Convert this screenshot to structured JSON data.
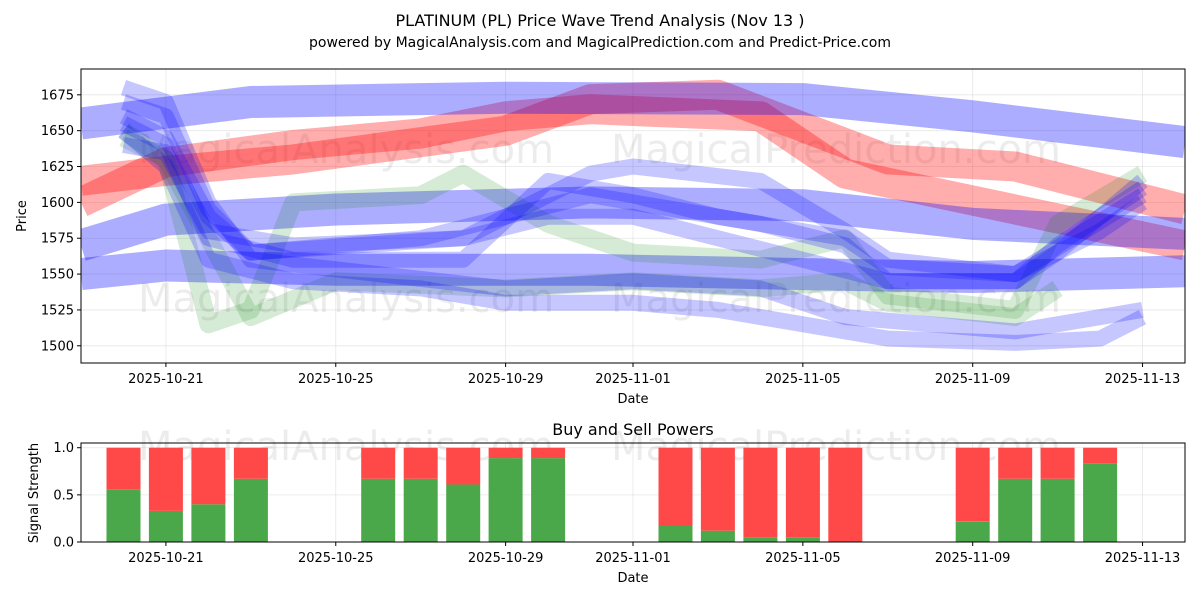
{
  "title_line1": "PLATINUM (PL) Price Wave Trend Analysis (Nov 13 )",
  "title_line2": "powered by MagicalAnalysis.com and MagicalPrediction.com and Predict-Price.com",
  "watermarks": [
    "MagicalAnalysis.com",
    "MagicalPrediction.com"
  ],
  "colors": {
    "blue": "#0000ff",
    "red": "#ff0000",
    "green": "#008000",
    "buy": "#4aa84a",
    "sell": "#ff4949"
  },
  "chart_data": [
    {
      "type": "area",
      "title": "",
      "xlabel": "Date",
      "ylabel": "Price",
      "ylim": [
        1488,
        1693
      ],
      "xlim": [
        "2025-10-19",
        "2025-11-14"
      ],
      "grid": true,
      "x_ticks": [
        "2025-10-21",
        "2025-10-25",
        "2025-10-29",
        "2025-11-01",
        "2025-11-05",
        "2025-11-09",
        "2025-11-13"
      ],
      "y_ticks": [
        1500,
        1525,
        1550,
        1575,
        1600,
        1625,
        1650,
        1675
      ],
      "series": [
        {
          "name": "wave-red-upper",
          "color": "red",
          "alpha": 0.32,
          "width": 30,
          "points": [
            [
              "2025-10-19",
              1615
            ],
            [
              "2025-10-21",
              1622
            ],
            [
              "2025-10-24",
              1630
            ],
            [
              "2025-10-29",
              1650
            ],
            [
              "2025-10-31",
              1672
            ],
            [
              "2025-11-03",
              1675
            ],
            [
              "2025-11-07",
              1630
            ],
            [
              "2025-11-10",
              1625
            ],
            [
              "2025-11-14",
              1595
            ]
          ]
        },
        {
          "name": "wave-red-lower",
          "color": "red",
          "alpha": 0.32,
          "width": 30,
          "points": [
            [
              "2025-10-19",
              1600
            ],
            [
              "2025-10-21",
              1628
            ],
            [
              "2025-10-24",
              1640
            ],
            [
              "2025-10-27",
              1648
            ],
            [
              "2025-10-29",
              1660
            ],
            [
              "2025-10-31",
              1665
            ],
            [
              "2025-11-04",
              1660
            ],
            [
              "2025-11-06",
              1620
            ],
            [
              "2025-11-10",
              1595
            ],
            [
              "2025-11-14",
              1570
            ]
          ]
        },
        {
          "name": "wave-blue-top",
          "color": "blue",
          "alpha": 0.32,
          "width": 32,
          "points": [
            [
              "2025-10-19",
              1655
            ],
            [
              "2025-10-23",
              1670
            ],
            [
              "2025-10-29",
              1673
            ],
            [
              "2025-11-05",
              1672
            ],
            [
              "2025-11-09",
              1660
            ],
            [
              "2025-11-14",
              1642
            ]
          ]
        },
        {
          "name": "wave-blue-mid",
          "color": "blue",
          "alpha": 0.32,
          "width": 32,
          "points": [
            [
              "2025-10-19",
              1570
            ],
            [
              "2025-10-21",
              1588
            ],
            [
              "2025-10-25",
              1595
            ],
            [
              "2025-10-31",
              1600
            ],
            [
              "2025-11-05",
              1598
            ],
            [
              "2025-11-09",
              1585
            ],
            [
              "2025-11-14",
              1578
            ]
          ]
        },
        {
          "name": "wave-blue-low",
          "color": "blue",
          "alpha": 0.32,
          "width": 32,
          "points": [
            [
              "2025-10-19",
              1550
            ],
            [
              "2025-10-21",
              1556
            ],
            [
              "2025-10-25",
              1553
            ],
            [
              "2025-10-31",
              1553
            ],
            [
              "2025-11-05",
              1550
            ],
            [
              "2025-11-09",
              1548
            ],
            [
              "2025-11-14",
              1552
            ]
          ]
        },
        {
          "name": "wave-green-a",
          "color": "green",
          "alpha": 0.16,
          "width": 18,
          "points": [
            [
              "2025-10-20",
              1650
            ],
            [
              "2025-10-21",
              1630
            ],
            [
              "2025-10-22",
              1515
            ],
            [
              "2025-10-23",
              1525
            ],
            [
              "2025-10-24",
              1600
            ],
            [
              "2025-10-27",
              1605
            ],
            [
              "2025-10-28",
              1620
            ],
            [
              "2025-10-30",
              1585
            ],
            [
              "2025-11-01",
              1565
            ],
            [
              "2025-11-04",
              1560
            ],
            [
              "2025-11-06",
              1575
            ],
            [
              "2025-11-07",
              1535
            ],
            [
              "2025-11-10",
              1525
            ],
            [
              "2025-11-11",
              1585
            ],
            [
              "2025-11-13",
              1620
            ]
          ]
        },
        {
          "name": "wave-green-b",
          "color": "green",
          "alpha": 0.16,
          "width": 18,
          "points": [
            [
              "2025-10-20",
              1645
            ],
            [
              "2025-10-21",
              1630
            ],
            [
              "2025-10-23",
              1520
            ],
            [
              "2025-10-25",
              1545
            ],
            [
              "2025-10-29",
              1540
            ],
            [
              "2025-11-01",
              1545
            ],
            [
              "2025-11-04",
              1540
            ],
            [
              "2025-11-06",
              1545
            ],
            [
              "2025-11-07",
              1530
            ],
            [
              "2025-11-10",
              1520
            ],
            [
              "2025-11-11",
              1540
            ]
          ]
        },
        {
          "name": "wave-blue-thin-1",
          "color": "blue",
          "alpha": 0.22,
          "width": 16,
          "points": [
            [
              "2025-10-20",
              1655
            ],
            [
              "2025-10-21",
              1640
            ],
            [
              "2025-10-22",
              1575
            ],
            [
              "2025-10-24",
              1560
            ],
            [
              "2025-10-28",
              1560
            ],
            [
              "2025-10-30",
              1615
            ],
            [
              "2025-11-01",
              1605
            ],
            [
              "2025-11-03",
              1590
            ],
            [
              "2025-11-04",
              1585
            ],
            [
              "2025-11-06",
              1570
            ],
            [
              "2025-11-07",
              1545
            ],
            [
              "2025-11-10",
              1545
            ],
            [
              "2025-11-11",
              1570
            ],
            [
              "2025-11-13",
              1610
            ]
          ]
        },
        {
          "name": "wave-blue-thin-2",
          "color": "blue",
          "alpha": 0.22,
          "width": 16,
          "points": [
            [
              "2025-10-20",
              1660
            ],
            [
              "2025-10-21",
              1645
            ],
            [
              "2025-10-22",
              1590
            ],
            [
              "2025-10-23",
              1565
            ],
            [
              "2025-10-27",
              1575
            ],
            [
              "2025-10-29",
              1590
            ],
            [
              "2025-10-31",
              1605
            ],
            [
              "2025-11-03",
              1590
            ],
            [
              "2025-11-05",
              1580
            ],
            [
              "2025-11-06",
              1575
            ],
            [
              "2025-11-07",
              1555
            ],
            [
              "2025-11-10",
              1550
            ],
            [
              "2025-11-13",
              1605
            ]
          ]
        },
        {
          "name": "wave-blue-thin-3",
          "color": "blue",
          "alpha": 0.22,
          "width": 16,
          "points": [
            [
              "2025-10-20",
              1650
            ],
            [
              "2025-10-21",
              1625
            ],
            [
              "2025-10-22",
              1560
            ],
            [
              "2025-10-24",
              1545
            ],
            [
              "2025-10-27",
              1540
            ],
            [
              "2025-10-29",
              1530
            ],
            [
              "2025-11-01",
              1530
            ],
            [
              "2025-11-03",
              1525
            ],
            [
              "2025-11-05",
              1515
            ],
            [
              "2025-11-07",
              1505
            ],
            [
              "2025-11-10",
              1502
            ],
            [
              "2025-11-12",
              1505
            ],
            [
              "2025-11-13",
              1520
            ]
          ]
        },
        {
          "name": "wave-blue-thin-4",
          "color": "blue",
          "alpha": 0.22,
          "width": 16,
          "points": [
            [
              "2025-10-20",
              1680
            ],
            [
              "2025-10-21",
              1670
            ],
            [
              "2025-10-22",
              1600
            ],
            [
              "2025-10-23",
              1560
            ],
            [
              "2025-10-26",
              1550
            ],
            [
              "2025-10-29",
              1540
            ],
            [
              "2025-11-01",
              1545
            ],
            [
              "2025-11-04",
              1540
            ],
            [
              "2025-11-06",
              1520
            ],
            [
              "2025-11-10",
              1510
            ],
            [
              "2025-11-12",
              1520
            ],
            [
              "2025-11-13",
              1525
            ]
          ]
        },
        {
          "name": "wave-blue-thin-5",
          "color": "blue",
          "alpha": 0.22,
          "width": 16,
          "points": [
            [
              "2025-10-20",
              1670
            ],
            [
              "2025-10-21",
              1660
            ],
            [
              "2025-10-22",
              1595
            ],
            [
              "2025-10-23",
              1565
            ],
            [
              "2025-10-28",
              1575
            ],
            [
              "2025-10-31",
              1620
            ],
            [
              "2025-11-01",
              1625
            ],
            [
              "2025-11-04",
              1615
            ],
            [
              "2025-11-06",
              1580
            ],
            [
              "2025-11-07",
              1560
            ],
            [
              "2025-11-10",
              1550
            ],
            [
              "2025-11-12",
              1580
            ],
            [
              "2025-11-13",
              1600
            ]
          ]
        },
        {
          "name": "wave-blue-thin-6",
          "color": "blue",
          "alpha": 0.22,
          "width": 16,
          "points": [
            [
              "2025-10-20",
              1640
            ],
            [
              "2025-10-21",
              1635
            ],
            [
              "2025-10-22",
              1580
            ],
            [
              "2025-10-24",
              1570
            ],
            [
              "2025-10-28",
              1575
            ],
            [
              "2025-10-30",
              1590
            ],
            [
              "2025-11-01",
              1590
            ],
            [
              "2025-11-03",
              1575
            ],
            [
              "2025-11-05",
              1560
            ],
            [
              "2025-11-07",
              1545
            ],
            [
              "2025-11-10",
              1545
            ],
            [
              "2025-11-11",
              1565
            ],
            [
              "2025-11-13",
              1615
            ]
          ]
        }
      ]
    },
    {
      "type": "bar",
      "title": "Buy and Sell Powers",
      "xlabel": "Date",
      "ylabel": "Signal Strength",
      "ylim": [
        0,
        1.05
      ],
      "xlim": [
        "2025-10-19",
        "2025-11-14"
      ],
      "grid": true,
      "x_ticks": [
        "2025-10-21",
        "2025-10-25",
        "2025-10-29",
        "2025-11-01",
        "2025-11-05",
        "2025-11-09",
        "2025-11-13"
      ],
      "y_ticks": [
        "0.0",
        "0.5",
        "1.0"
      ],
      "categories": [
        "2025-10-20",
        "2025-10-21",
        "2025-10-22",
        "2025-10-23",
        "2025-10-26",
        "2025-10-27",
        "2025-10-28",
        "2025-10-29",
        "2025-10-30",
        "2025-11-02",
        "2025-11-03",
        "2025-11-04",
        "2025-11-05",
        "2025-11-06",
        "2025-11-09",
        "2025-11-10",
        "2025-11-11",
        "2025-11-12"
      ],
      "series": [
        {
          "name": "Buy",
          "color": "buy",
          "values": [
            0.56,
            0.33,
            0.4,
            0.67,
            0.67,
            0.67,
            0.61,
            0.89,
            0.89,
            0.17,
            0.12,
            0.05,
            0.05,
            0.0,
            0.22,
            0.67,
            0.67,
            0.83
          ]
        },
        {
          "name": "Sell",
          "color": "sell",
          "values": [
            0.44,
            0.67,
            0.6,
            0.33,
            0.33,
            0.33,
            0.39,
            0.11,
            0.11,
            0.83,
            0.88,
            0.95,
            0.95,
            1.0,
            0.78,
            0.33,
            0.33,
            0.17
          ]
        }
      ]
    }
  ]
}
